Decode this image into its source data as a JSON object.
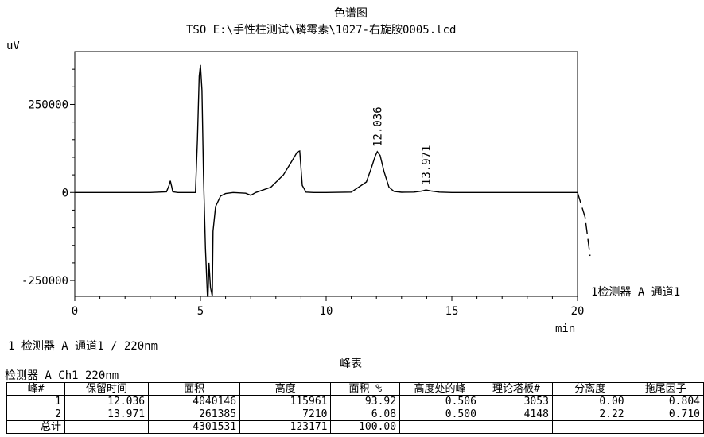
{
  "title": "色谱图",
  "file_line": "TSO E:\\手性柱测试\\磷霉素\\1027-右旋胺0005.lcd",
  "chart_data": {
    "type": "line",
    "title": "色谱图",
    "ylabel": "uV",
    "xlabel": "min",
    "xlim": [
      0,
      20
    ],
    "ylim": [
      -295000,
      400000
    ],
    "x_ticks": [
      0,
      5,
      10,
      15,
      20
    ],
    "y_ticks": [
      -250000,
      0,
      250000
    ],
    "x_tick_labels": [
      "0",
      "5",
      "10",
      "15",
      "20"
    ],
    "y_tick_labels": [
      "-250000",
      "0",
      "250000"
    ],
    "series_label": "1检测器 A 通道1",
    "series": [
      {
        "x": [
          0,
          3.0,
          3.65,
          3.75,
          3.8,
          3.85,
          3.9,
          4.1,
          4.8,
          4.88,
          4.95,
          5.0,
          5.06,
          5.12,
          5.2,
          5.28,
          5.3,
          5.34,
          5.4,
          5.47,
          5.5,
          5.6,
          5.8,
          6.0,
          6.3,
          6.8,
          7.0,
          7.2,
          7.8,
          8.3,
          8.6,
          8.85,
          8.95,
          9.05,
          9.2,
          9.5,
          10.0,
          11.0,
          11.6,
          11.8,
          11.95,
          12.036,
          12.15,
          12.3,
          12.5,
          12.7,
          13.0,
          13.5,
          13.8,
          13.971,
          14.2,
          14.5,
          15.0,
          16.0,
          18.0,
          19.5,
          20.0,
          20.3,
          20.5
        ],
        "y": [
          0,
          0,
          2000,
          20000,
          33000,
          18000,
          2000,
          0,
          0,
          150000,
          330000,
          362000,
          290000,
          50000,
          -160000,
          -295000,
          -295000,
          -200000,
          -270000,
          -295000,
          -110000,
          -40000,
          -10000,
          -3000,
          0,
          -2000,
          -8000,
          0,
          15000,
          50000,
          85000,
          115000,
          118000,
          20000,
          1000,
          0,
          0,
          1000,
          30000,
          70000,
          103000,
          116000,
          105000,
          60000,
          15000,
          3000,
          500,
          1000,
          4000,
          7210,
          4000,
          1000,
          0,
          0,
          0,
          0,
          0,
          -70000,
          -180000
        ]
      }
    ],
    "peak_labels": [
      {
        "label": "12.036",
        "x": 12.036,
        "y": 116000
      },
      {
        "label": "13.971",
        "x": 13.971,
        "y": 7210
      }
    ]
  },
  "detector_line": "1  检测器 A 通道1 / 220nm",
  "peak_table": {
    "title": "峰表",
    "subtitle": "检测器 A Ch1 220nm",
    "headers": [
      "峰#",
      "保留时间",
      "面积",
      "高度",
      "面积 %",
      "高度处的峰",
      "理论塔板#",
      "分离度",
      "拖尾因子"
    ],
    "rows": [
      [
        "1",
        "12.036",
        "4040146",
        "115961",
        "93.92",
        "0.506",
        "3053",
        "0.00",
        "0.804"
      ],
      [
        "2",
        "13.971",
        "261385",
        "7210",
        "6.08",
        "0.500",
        "4148",
        "2.22",
        "0.710"
      ],
      [
        "总计",
        "",
        "4301531",
        "123171",
        "100.00",
        "",
        "",
        "",
        ""
      ]
    ]
  }
}
